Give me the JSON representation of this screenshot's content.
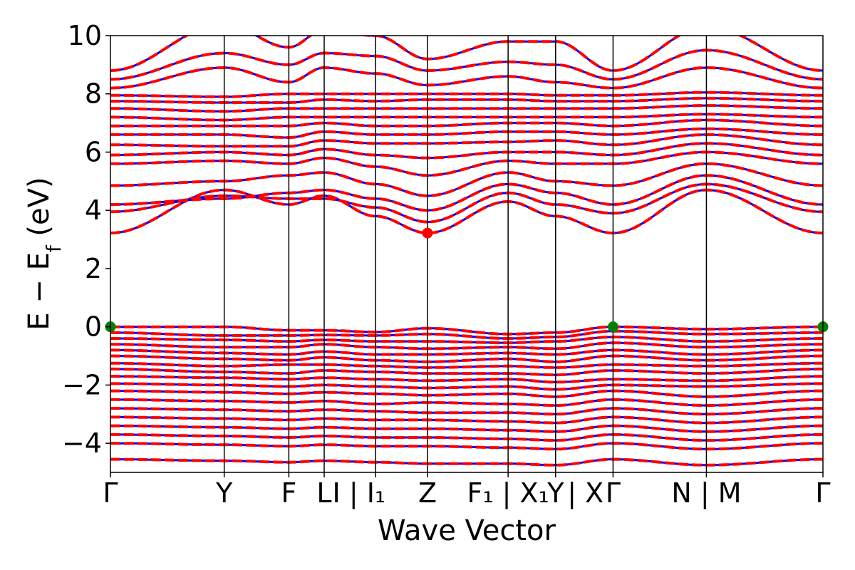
{
  "chart_data": {
    "type": "line",
    "title": "",
    "xlabel": "Wave Vector",
    "ylabel": "E − E_f (eV)",
    "ylabel_parts": {
      "main": "E − E",
      "sub": "f",
      "unit": " (eV)"
    },
    "ylim": [
      -5,
      10
    ],
    "xlim": [
      0,
      12.9
    ],
    "grid": false,
    "y_ticks": [
      {
        "value": -4,
        "label": "−4"
      },
      {
        "value": -2,
        "label": "−2"
      },
      {
        "value": 0,
        "label": "0"
      },
      {
        "value": 2,
        "label": "2"
      },
      {
        "value": 4,
        "label": "4"
      },
      {
        "value": 6,
        "label": "6"
      },
      {
        "value": 8,
        "label": "8"
      },
      {
        "value": 10,
        "label": "10"
      }
    ],
    "k_points": [
      0.0,
      2.06,
      3.23,
      3.87,
      4.8,
      5.74,
      7.2,
      8.06,
      9.1,
      10.79,
      12.9
    ],
    "x_tick_labels": [
      {
        "x": 0.0,
        "text": "Γ"
      },
      {
        "x": 2.06,
        "text": "Y"
      },
      {
        "x": 3.23,
        "text": "F"
      },
      {
        "x": 3.87,
        "text": "L"
      },
      {
        "x": 4.5,
        "text": "I | I₁"
      },
      {
        "x": 5.74,
        "text": "Z"
      },
      {
        "x": 7.2,
        "text": "F₁ | X₁"
      },
      {
        "x": 8.06,
        "text": "Y"
      },
      {
        "x": 8.6,
        "text": "| X"
      },
      {
        "x": 9.1,
        "text": "Γ"
      },
      {
        "x": 10.79,
        "text": "N | M"
      },
      {
        "x": 12.9,
        "text": "Γ"
      }
    ],
    "series": [
      {
        "color": "#0000ff",
        "style": "solid"
      },
      {
        "color": "#ff0000",
        "style": "dashed"
      }
    ],
    "valence_bands": [
      [
        0.0,
        0.0,
        -0.12,
        -0.12,
        -0.18,
        -0.05,
        -0.25,
        -0.2,
        0.0,
        -0.08,
        0.0
      ],
      [
        -0.2,
        -0.3,
        -0.3,
        -0.28,
        -0.3,
        -0.25,
        -0.4,
        -0.35,
        -0.15,
        -0.25,
        -0.2
      ],
      [
        -0.4,
        -0.45,
        -0.5,
        -0.45,
        -0.5,
        -0.5,
        -0.55,
        -0.5,
        -0.35,
        -0.5,
        -0.4
      ],
      [
        -0.6,
        -0.7,
        -0.7,
        -0.6,
        -0.7,
        -0.75,
        -0.7,
        -0.75,
        -0.55,
        -0.7,
        -0.6
      ],
      [
        -0.8,
        -0.9,
        -0.95,
        -0.85,
        -0.95,
        -0.95,
        -0.9,
        -0.95,
        -0.8,
        -0.95,
        -0.8
      ],
      [
        -1.0,
        -1.1,
        -1.15,
        -1.05,
        -1.15,
        -1.2,
        -1.1,
        -1.2,
        -1.0,
        -1.15,
        -1.0
      ],
      [
        -1.25,
        -1.35,
        -1.3,
        -1.3,
        -1.35,
        -1.4,
        -1.35,
        -1.4,
        -1.3,
        -1.35,
        -1.25
      ],
      [
        -1.45,
        -1.55,
        -1.6,
        -1.5,
        -1.55,
        -1.6,
        -1.6,
        -1.65,
        -1.5,
        -1.6,
        -1.45
      ],
      [
        -1.7,
        -1.75,
        -1.8,
        -1.75,
        -1.8,
        -1.85,
        -1.8,
        -1.9,
        -1.8,
        -1.85,
        -1.7
      ],
      [
        -1.95,
        -2.0,
        -2.05,
        -2.0,
        -2.05,
        -2.1,
        -2.05,
        -2.15,
        -2.0,
        -2.05,
        -1.95
      ],
      [
        -2.2,
        -2.25,
        -2.3,
        -2.25,
        -2.3,
        -2.35,
        -2.3,
        -2.4,
        -2.2,
        -2.4,
        -2.2
      ],
      [
        -2.5,
        -2.55,
        -2.6,
        -2.55,
        -2.65,
        -2.6,
        -2.65,
        -2.7,
        -2.5,
        -2.7,
        -2.5
      ],
      [
        -2.8,
        -2.85,
        -2.9,
        -2.85,
        -2.9,
        -2.95,
        -2.95,
        -3.0,
        -2.8,
        -3.0,
        -2.8
      ],
      [
        -3.1,
        -3.15,
        -3.2,
        -3.15,
        -3.2,
        -3.2,
        -3.25,
        -3.3,
        -3.1,
        -3.3,
        -3.1
      ],
      [
        -3.4,
        -3.45,
        -3.5,
        -3.45,
        -3.5,
        -3.5,
        -3.55,
        -3.6,
        -3.4,
        -3.6,
        -3.4
      ],
      [
        -3.7,
        -3.75,
        -3.8,
        -3.75,
        -3.8,
        -3.8,
        -3.85,
        -3.9,
        -3.7,
        -3.9,
        -3.7
      ],
      [
        -4.0,
        -4.05,
        -4.1,
        -4.05,
        -4.1,
        -4.1,
        -4.15,
        -4.2,
        -4.0,
        -4.2,
        -4.0
      ],
      [
        -4.55,
        -4.6,
        -4.65,
        -4.6,
        -4.65,
        -4.7,
        -4.7,
        -4.75,
        -4.55,
        -4.75,
        -4.55
      ]
    ],
    "conduction_bands": [
      [
        3.22,
        4.7,
        4.2,
        4.5,
        3.8,
        3.22,
        4.3,
        3.8,
        3.22,
        4.7,
        3.22
      ],
      [
        3.95,
        4.5,
        4.4,
        4.4,
        4.1,
        3.6,
        4.6,
        4.2,
        3.9,
        4.9,
        3.95
      ],
      [
        4.2,
        4.4,
        4.6,
        4.7,
        4.4,
        4.0,
        4.9,
        4.6,
        4.2,
        5.2,
        4.2
      ],
      [
        4.85,
        5.0,
        5.2,
        5.3,
        4.9,
        4.5,
        5.3,
        5.0,
        4.85,
        5.6,
        4.85
      ],
      [
        5.6,
        5.7,
        5.6,
        5.8,
        5.5,
        5.2,
        5.7,
        5.6,
        5.6,
        6.0,
        5.6
      ],
      [
        5.9,
        6.0,
        5.9,
        6.1,
        5.9,
        5.8,
        6.0,
        6.0,
        5.9,
        6.3,
        5.9
      ],
      [
        6.25,
        6.2,
        6.2,
        6.4,
        6.3,
        6.3,
        6.35,
        6.4,
        6.25,
        6.6,
        6.25
      ],
      [
        6.6,
        6.6,
        6.5,
        6.7,
        6.6,
        6.6,
        6.7,
        6.7,
        6.6,
        6.8,
        6.6
      ],
      [
        6.9,
        6.9,
        6.9,
        7.0,
        6.9,
        6.9,
        7.0,
        7.0,
        6.9,
        7.1,
        6.9
      ],
      [
        7.2,
        7.1,
        7.2,
        7.2,
        7.2,
        7.2,
        7.2,
        7.2,
        7.2,
        7.3,
        7.2
      ],
      [
        7.5,
        7.4,
        7.5,
        7.5,
        7.5,
        7.5,
        7.5,
        7.5,
        7.5,
        7.6,
        7.5
      ],
      [
        7.75,
        7.7,
        7.7,
        7.8,
        7.75,
        7.8,
        7.8,
        7.75,
        7.75,
        7.85,
        7.75
      ],
      [
        7.95,
        7.9,
        8.0,
        8.0,
        8.0,
        8.0,
        8.0,
        7.95,
        7.95,
        8.05,
        7.95
      ],
      [
        8.2,
        8.9,
        8.4,
        8.9,
        8.7,
        8.3,
        8.6,
        8.4,
        8.2,
        8.9,
        8.2
      ],
      [
        8.5,
        9.4,
        9.0,
        9.4,
        9.3,
        8.8,
        9.1,
        9.0,
        8.5,
        9.5,
        8.5
      ],
      [
        8.8,
        10.4,
        9.6,
        10.2,
        10.0,
        9.2,
        9.8,
        9.8,
        8.8,
        10.3,
        8.8
      ]
    ],
    "markers": [
      {
        "x": 0.0,
        "y": 0.0,
        "color": "#008000"
      },
      {
        "x": 9.1,
        "y": 0.0,
        "color": "#008000"
      },
      {
        "x": 12.9,
        "y": 0.0,
        "color": "#008000"
      },
      {
        "x": 5.74,
        "y": 3.22,
        "color": "#ff0000"
      }
    ]
  }
}
